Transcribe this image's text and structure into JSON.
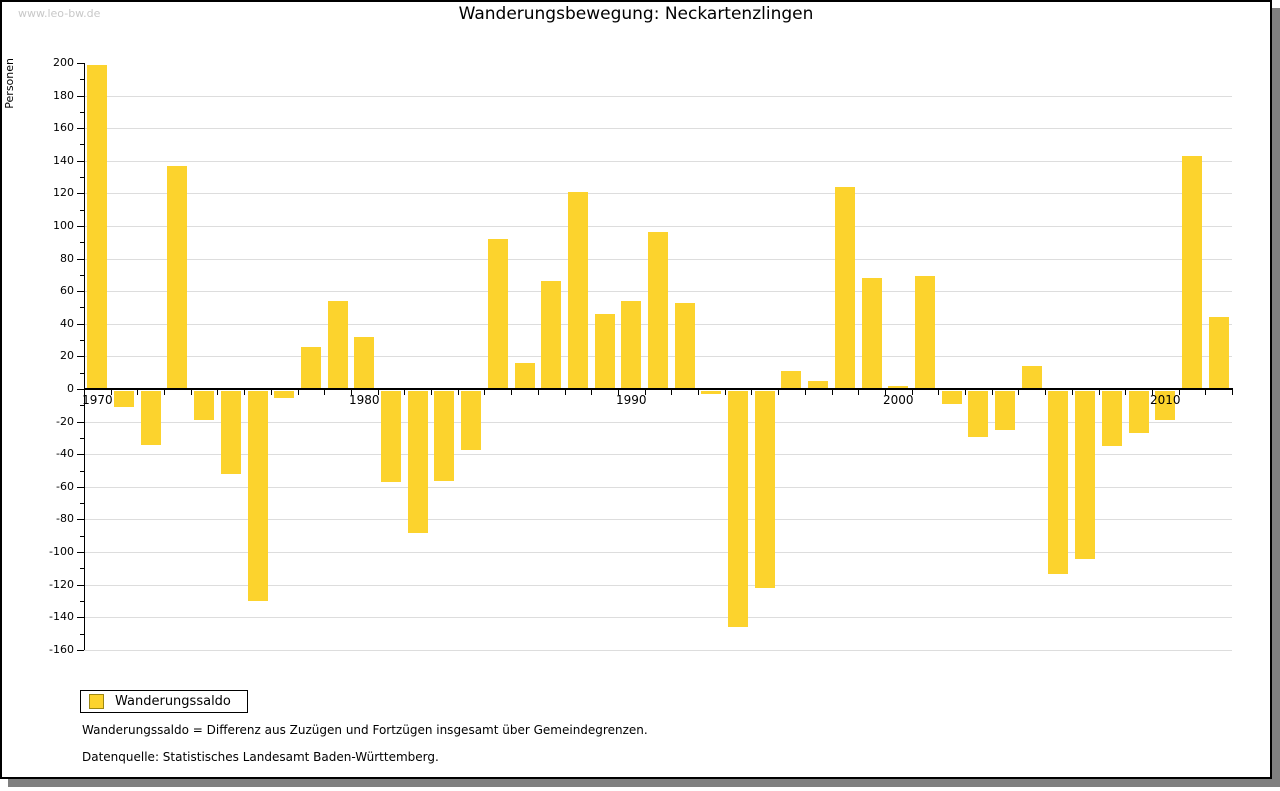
{
  "watermark": "www.leo-bw.de",
  "header": {
    "title": "Wanderungsbewegung: Neckartenzlingen"
  },
  "legend": {
    "label": "Wanderungssaldo"
  },
  "footnotes": {
    "definition": "Wanderungssaldo = Differenz aus Zuzügen und Fortzügen insgesamt über Gemeindegrenzen.",
    "source": "Datenquelle: Statistisches Landesamt Baden-Württemberg."
  },
  "colors": {
    "bar": "#FCD32D",
    "grid": "#DDDDDD",
    "axis": "#000000",
    "watermark": "#C8C8C8",
    "frame_shadow": "#808080",
    "legend_swatch_border": "#9C8712"
  },
  "chart_data": {
    "type": "bar",
    "title": "Wanderungsbewegung: Neckartenzlingen",
    "xlabel": "",
    "ylabel": "Personen",
    "ylim": [
      -160,
      200
    ],
    "y_tick_step": 20,
    "y_minor_tick_step": 10,
    "grid": true,
    "legend_position": "bottom-left",
    "series_name": "Wanderungssaldo",
    "x_labeled_ticks": [
      1970,
      1980,
      1990,
      2000,
      2010
    ],
    "categories": [
      1970,
      1971,
      1972,
      1973,
      1974,
      1975,
      1976,
      1977,
      1978,
      1979,
      1980,
      1981,
      1982,
      1983,
      1984,
      1985,
      1986,
      1987,
      1988,
      1989,
      1990,
      1991,
      1992,
      1993,
      1994,
      1995,
      1996,
      1997,
      1998,
      1999,
      2000,
      2001,
      2002,
      2003,
      2004,
      2005,
      2006,
      2007,
      2008,
      2009,
      2010,
      2011,
      2012
    ],
    "values": [
      199,
      -10,
      -33,
      137,
      -18,
      -51,
      -129,
      -4,
      26,
      54,
      32,
      -56,
      -87,
      -55,
      -36,
      92,
      16,
      66,
      121,
      46,
      54,
      96,
      53,
      -2,
      -145,
      -121,
      11,
      5,
      124,
      68,
      2,
      69,
      -8,
      -28,
      -24,
      14,
      -112,
      -103,
      -34,
      -26,
      -18,
      143,
      44
    ]
  }
}
